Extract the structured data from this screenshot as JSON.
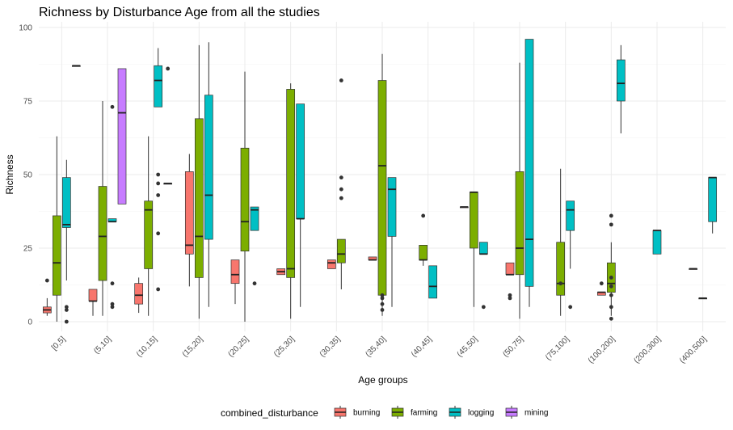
{
  "chart_data": {
    "type": "boxplot",
    "title": "Richness by Disturbance Age from all the studies",
    "xlabel": "Age groups",
    "ylabel": "Richness",
    "ylim": [
      0,
      100
    ],
    "yticks": [
      0,
      25,
      50,
      75,
      100
    ],
    "grid": true,
    "legend_position": "bottom",
    "categories": [
      "[0,5]",
      "(5,10]",
      "(10,15]",
      "(15,20]",
      "(20,25]",
      "(25,30]",
      "(30,35]",
      "(35,40]",
      "(40,45]",
      "(45,50]",
      "(50,75]",
      "(75,100]",
      "(100,200]",
      "(200,300]",
      "(400,500]"
    ],
    "legend": {
      "title": "combined_disturbance",
      "groups": [
        {
          "name": "burning",
          "color": "#F8766D"
        },
        {
          "name": "farming",
          "color": "#7CAE00"
        },
        {
          "name": "logging",
          "color": "#00BFC4"
        },
        {
          "name": "mining",
          "color": "#C77CFF"
        }
      ]
    },
    "boxes": [
      {
        "category": "[0,5]",
        "group": "burning",
        "min": 2,
        "q1": 3,
        "median": 4,
        "q3": 5,
        "max": 8,
        "outliers": [
          14
        ]
      },
      {
        "category": "[0,5]",
        "group": "farming",
        "min": 0,
        "q1": 9,
        "median": 20,
        "q3": 36,
        "max": 63,
        "outliers": []
      },
      {
        "category": "[0,5]",
        "group": "logging",
        "min": 14,
        "q1": 32,
        "median": 33,
        "q3": 49,
        "max": 55,
        "outliers": [
          0,
          4,
          5
        ]
      },
      {
        "category": "[0,5]",
        "group": "mining",
        "min": 87,
        "q1": 87,
        "median": 87,
        "q3": 87,
        "max": 87,
        "outliers": []
      },
      {
        "category": "(5,10]",
        "group": "burning",
        "min": 2,
        "q1": 7,
        "median": 7,
        "q3": 11,
        "max": 11,
        "outliers": []
      },
      {
        "category": "(5,10]",
        "group": "farming",
        "min": 2,
        "q1": 14,
        "median": 29,
        "q3": 46,
        "max": 75,
        "outliers": []
      },
      {
        "category": "(5,10]",
        "group": "logging",
        "min": 34,
        "q1": 34,
        "median": 34,
        "q3": 35,
        "max": 35,
        "outliers": [
          5,
          6,
          13,
          73
        ]
      },
      {
        "category": "(5,10]",
        "group": "mining",
        "min": 40,
        "q1": 40,
        "median": 71,
        "q3": 86,
        "max": 86,
        "outliers": []
      },
      {
        "category": "(10,15]",
        "group": "burning",
        "min": 3,
        "q1": 6,
        "median": 9,
        "q3": 13,
        "max": 15,
        "outliers": []
      },
      {
        "category": "(10,15]",
        "group": "farming",
        "min": 2,
        "q1": 18,
        "median": 38,
        "q3": 41,
        "max": 63,
        "outliers": []
      },
      {
        "category": "(10,15]",
        "group": "logging",
        "min": 73,
        "q1": 73,
        "median": 82,
        "q3": 87,
        "max": 93,
        "outliers": [
          11,
          30,
          43,
          47,
          50
        ]
      },
      {
        "category": "(10,15]",
        "group": "mining",
        "min": 47,
        "q1": 47,
        "median": 47,
        "q3": 47,
        "max": 47,
        "outliers": [
          86
        ]
      },
      {
        "category": "(15,20]",
        "group": "burning",
        "min": 12,
        "q1": 23,
        "median": 26,
        "q3": 51,
        "max": 57,
        "outliers": []
      },
      {
        "category": "(15,20]",
        "group": "farming",
        "min": 1,
        "q1": 15,
        "median": 29,
        "q3": 69,
        "max": 94,
        "outliers": []
      },
      {
        "category": "(15,20]",
        "group": "logging",
        "min": 5,
        "q1": 28,
        "median": 43,
        "q3": 77,
        "max": 95,
        "outliers": []
      },
      {
        "category": "(20,25]",
        "group": "burning",
        "min": 6,
        "q1": 13,
        "median": 16,
        "q3": 21,
        "max": 21,
        "outliers": []
      },
      {
        "category": "(20,25]",
        "group": "farming",
        "min": 0,
        "q1": 24,
        "median": 34,
        "q3": 59,
        "max": 85,
        "outliers": []
      },
      {
        "category": "(20,25]",
        "group": "logging",
        "min": 31,
        "q1": 31,
        "median": 38,
        "q3": 39,
        "max": 39,
        "outliers": [
          13
        ]
      },
      {
        "category": "(25,30]",
        "group": "burning",
        "min": 16,
        "q1": 16,
        "median": 17,
        "q3": 18,
        "max": 18,
        "outliers": []
      },
      {
        "category": "(25,30]",
        "group": "farming",
        "min": 1,
        "q1": 15,
        "median": 18,
        "q3": 79,
        "max": 81,
        "outliers": []
      },
      {
        "category": "(25,30]",
        "group": "logging",
        "min": 5,
        "q1": 35,
        "median": 35,
        "q3": 74,
        "max": 74,
        "outliers": []
      },
      {
        "category": "(30,35]",
        "group": "burning",
        "min": 18,
        "q1": 18,
        "median": 20,
        "q3": 21,
        "max": 21,
        "outliers": []
      },
      {
        "category": "(30,35]",
        "group": "farming",
        "min": 11,
        "q1": 20,
        "median": 23,
        "q3": 28,
        "max": 28,
        "outliers": [
          42,
          45,
          49,
          82
        ]
      },
      {
        "category": "(35,40]",
        "group": "burning",
        "min": 21,
        "q1": 21,
        "median": 21,
        "q3": 22,
        "max": 22,
        "outliers": []
      },
      {
        "category": "(35,40]",
        "group": "farming",
        "min": 2,
        "q1": 9,
        "median": 53,
        "q3": 82,
        "max": 91,
        "outliers": [
          4,
          6,
          8,
          9
        ]
      },
      {
        "category": "(35,40]",
        "group": "logging",
        "min": 5,
        "q1": 29,
        "median": 45,
        "q3": 49,
        "max": 49,
        "outliers": []
      },
      {
        "category": "(40,45]",
        "group": "farming",
        "min": 19,
        "q1": 21,
        "median": 21,
        "q3": 26,
        "max": 26,
        "outliers": [
          36
        ]
      },
      {
        "category": "(40,45]",
        "group": "logging",
        "min": 8,
        "q1": 8,
        "median": 12,
        "q3": 19,
        "max": 19,
        "outliers": []
      },
      {
        "category": "(45,50]",
        "group": "burning",
        "min": 39,
        "q1": 39,
        "median": 39,
        "q3": 39,
        "max": 39,
        "outliers": []
      },
      {
        "category": "(45,50]",
        "group": "farming",
        "min": 5,
        "q1": 25,
        "median": 44,
        "q3": 44,
        "max": 44,
        "outliers": []
      },
      {
        "category": "(45,50]",
        "group": "logging",
        "min": 23,
        "q1": 23,
        "median": 23,
        "q3": 27,
        "max": 27,
        "outliers": [
          5
        ]
      },
      {
        "category": "(50,75]",
        "group": "burning",
        "min": 16,
        "q1": 16,
        "median": 16,
        "q3": 20,
        "max": 20,
        "outliers": [
          8,
          9
        ]
      },
      {
        "category": "(50,75]",
        "group": "farming",
        "min": 1,
        "q1": 16,
        "median": 25,
        "q3": 51,
        "max": 88,
        "outliers": []
      },
      {
        "category": "(50,75]",
        "group": "logging",
        "min": 5,
        "q1": 12,
        "median": 28,
        "q3": 96,
        "max": 96,
        "outliers": []
      },
      {
        "category": "(75,100]",
        "group": "farming",
        "min": 2,
        "q1": 9,
        "median": 13,
        "q3": 27,
        "max": 52,
        "outliers": [
          13
        ]
      },
      {
        "category": "(75,100]",
        "group": "logging",
        "min": 18,
        "q1": 31,
        "median": 38,
        "q3": 41,
        "max": 41,
        "outliers": [
          5
        ]
      },
      {
        "category": "(100,200]",
        "group": "burning",
        "min": 9,
        "q1": 9,
        "median": 10,
        "q3": 10,
        "max": 10,
        "outliers": [
          13
        ]
      },
      {
        "category": "(100,200]",
        "group": "farming",
        "min": 2,
        "q1": 10,
        "median": 13,
        "q3": 20,
        "max": 27,
        "outliers": [
          1,
          5,
          9,
          12,
          15,
          33,
          36
        ]
      },
      {
        "category": "(100,200]",
        "group": "logging",
        "min": 64,
        "q1": 75,
        "median": 81,
        "q3": 89,
        "max": 94,
        "outliers": []
      },
      {
        "category": "(200,300]",
        "group": "logging",
        "min": 23,
        "q1": 23,
        "median": 31,
        "q3": 31,
        "max": 31,
        "outliers": []
      },
      {
        "category": "(400,500]",
        "group": "burning",
        "min": 18,
        "q1": 18,
        "median": 18,
        "q3": 18,
        "max": 18,
        "outliers": []
      },
      {
        "category": "(400,500]",
        "group": "farming",
        "min": 8,
        "q1": 8,
        "median": 8,
        "q3": 8,
        "max": 8,
        "outliers": []
      },
      {
        "category": "(400,500]",
        "group": "logging",
        "min": 30,
        "q1": 34,
        "median": 49,
        "q3": 49,
        "max": 49,
        "outliers": []
      }
    ]
  }
}
